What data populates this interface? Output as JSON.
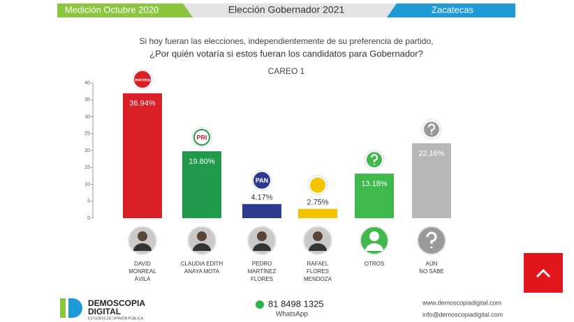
{
  "header": {
    "left": "Medición Octubre 2020",
    "center": "Elección Gobernador 2021",
    "right": "Zacatecas"
  },
  "chart_data": {
    "type": "bar",
    "subtitle": [
      "Si hoy fueran las elecciones, independientemente de su preferencia de partido,",
      "¿Por quién votaría si estos fueran los candidatos para Gobernador?"
    ],
    "title": "CAREO 1",
    "categories": [
      "DAVID\nMONREAL\nÁVILA",
      "CLAUDIA EDITH\nANAYA MOTA",
      "PEDRO\nMARTÍNEZ\nFLORES",
      "RAFAEL\nFLORES\nMENDOZA",
      "OTROS",
      "AÚN\nNO SABE"
    ],
    "values": [
      36.94,
      19.8,
      4.17,
      2.75,
      13.18,
      22.16
    ],
    "value_labels": [
      "36.94%",
      "19.80%",
      "4.17%",
      "2.75%",
      "13.18%",
      "22.16%"
    ],
    "colors": [
      "#d81f26",
      "#1f9a4a",
      "#2d3b8e",
      "#f5c400",
      "#3fb94b",
      "#b8b8b8"
    ],
    "logos": [
      "morena",
      "PRI",
      "PAN",
      null,
      null,
      null
    ],
    "ylim": [
      0,
      40
    ],
    "yticks": [
      0,
      5,
      10,
      15,
      20,
      25,
      30,
      35,
      40
    ]
  },
  "footer": {
    "brand": [
      "DEMOSCOPIA",
      "DIGITAL"
    ],
    "tagline": "ESTUDIOS DE OPINIÓN PÚBLICA",
    "phone": "81 8498 1325",
    "whatsapp": "WhatsApp",
    "web": "www.demoscopiadigital.com",
    "email": "info@demoscopiadigital.com"
  }
}
